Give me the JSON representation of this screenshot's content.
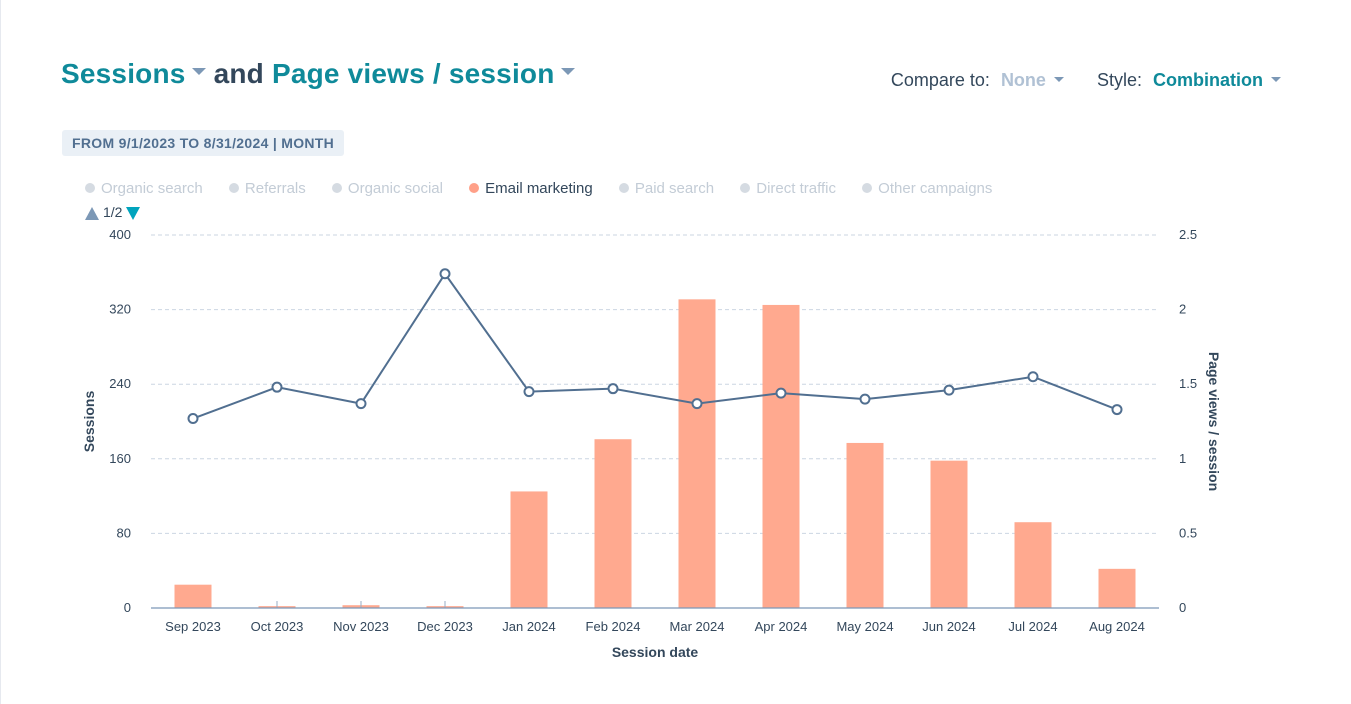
{
  "header": {
    "metric1": "Sessions",
    "conjunction": "and",
    "metric2": "Page views / session",
    "compare_label": "Compare to:",
    "compare_value": "None",
    "style_label": "Style:",
    "style_value": "Combination"
  },
  "date_range": "FROM 9/1/2023 TO 8/31/2024 | MONTH",
  "legend": [
    {
      "label": "Organic search",
      "active": false
    },
    {
      "label": "Referrals",
      "active": false
    },
    {
      "label": "Organic social",
      "active": false
    },
    {
      "label": "Email marketing",
      "active": true
    },
    {
      "label": "Paid search",
      "active": false
    },
    {
      "label": "Direct traffic",
      "active": false
    },
    {
      "label": "Other campaigns",
      "active": false
    }
  ],
  "pager": "1/2",
  "colors": {
    "bar": "#ffa98f",
    "line": "#516f90",
    "grid": "#cbd6e2",
    "axis": "#7c98b6",
    "text": "#33475b"
  },
  "chart_data": {
    "type": "bar",
    "categories": [
      "Sep 2023",
      "Oct 2023",
      "Nov 2023",
      "Dec 2023",
      "Jan 2024",
      "Feb 2024",
      "Mar 2024",
      "Apr 2024",
      "May 2024",
      "Jun 2024",
      "Jul 2024",
      "Aug 2024"
    ],
    "series": [
      {
        "name": "Email marketing",
        "type": "bar",
        "axis": "left",
        "values": [
          25,
          2,
          3,
          2,
          125,
          181,
          331,
          325,
          177,
          158,
          92,
          42
        ]
      },
      {
        "name": "Page views / session",
        "type": "line",
        "axis": "right",
        "values": [
          1.27,
          1.48,
          1.37,
          2.24,
          1.45,
          1.47,
          1.37,
          1.44,
          1.4,
          1.46,
          1.55,
          1.33
        ]
      }
    ],
    "xlabel": "Session date",
    "ylabel": "Sessions",
    "y2label": "Page views / session",
    "ylim": [
      0,
      400
    ],
    "y2lim": [
      0,
      2.5
    ],
    "yticks": [
      "0",
      "80",
      "160",
      "240",
      "320",
      "400"
    ],
    "y2ticks": [
      "0",
      "0.5",
      "1",
      "1.5",
      "2",
      "2.5"
    ],
    "grid": true,
    "legend_position": "top-left"
  }
}
